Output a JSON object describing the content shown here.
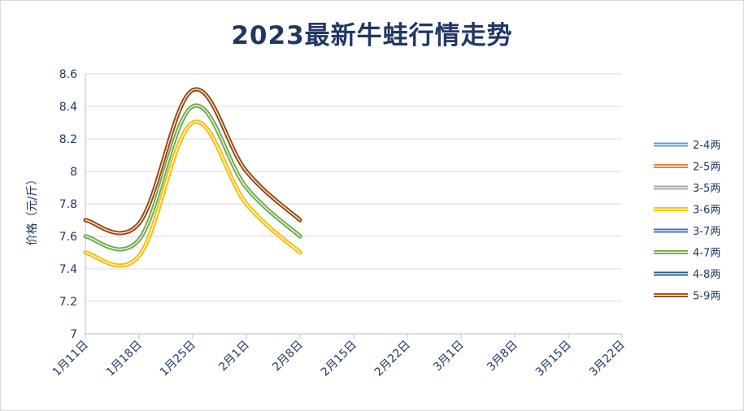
{
  "chart_data": {
    "type": "line",
    "title": "2023最新牛蛙行情走势",
    "ylabel": "价格（元/斤）",
    "xlabel": "",
    "ylim": [
      7,
      8.6
    ],
    "yticks": [
      "7",
      "7.2",
      "7.4",
      "7.6",
      "7.8",
      "8",
      "8.2",
      "8.4",
      "8.6"
    ],
    "categories": [
      "1月11日",
      "1月18日",
      "1月25日",
      "2月1日",
      "2月8日",
      "2月15日",
      "2月22日",
      "3月1日",
      "3月8日",
      "3月15日",
      "3月22日"
    ],
    "grid": true,
    "legend_position": "right",
    "series": [
      {
        "name": "2-4两",
        "color": "#5b9bd5",
        "values": [
          7.5,
          7.48,
          8.3,
          7.8,
          7.5,
          null,
          null,
          null,
          null,
          null,
          null
        ]
      },
      {
        "name": "2-5两",
        "color": "#ed7d31",
        "values": [
          7.5,
          7.48,
          8.3,
          7.8,
          7.5,
          null,
          null,
          null,
          null,
          null,
          null
        ]
      },
      {
        "name": "3-5两",
        "color": "#a5a5a5",
        "values": [
          7.5,
          7.48,
          8.3,
          7.8,
          7.5,
          null,
          null,
          null,
          null,
          null,
          null
        ]
      },
      {
        "name": "3-6两",
        "color": "#ffc000",
        "values": [
          7.5,
          7.48,
          8.3,
          7.8,
          7.5,
          null,
          null,
          null,
          null,
          null,
          null
        ]
      },
      {
        "name": "3-7两",
        "color": "#4472c4",
        "values": [
          7.6,
          7.58,
          8.4,
          7.9,
          7.6,
          null,
          null,
          null,
          null,
          null,
          null
        ]
      },
      {
        "name": "4-7两",
        "color": "#70ad47",
        "values": [
          7.6,
          7.58,
          8.4,
          7.9,
          7.6,
          null,
          null,
          null,
          null,
          null,
          null
        ]
      },
      {
        "name": "4-8两",
        "color": "#255e91",
        "values": [
          7.7,
          7.68,
          8.5,
          8.0,
          7.7,
          null,
          null,
          null,
          null,
          null,
          null
        ]
      },
      {
        "name": "5-9两",
        "color": "#9e480e",
        "values": [
          7.7,
          7.68,
          8.5,
          8.0,
          7.7,
          null,
          null,
          null,
          null,
          null,
          null
        ]
      }
    ]
  }
}
